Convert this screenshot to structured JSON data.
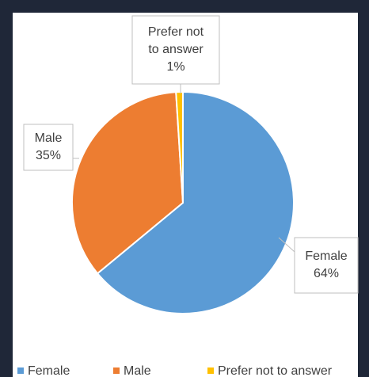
{
  "chart_data": {
    "type": "pie",
    "categories": [
      "Female",
      "Male",
      "Prefer not to answer"
    ],
    "data_label_names": [
      [
        "Female"
      ],
      [
        "Male"
      ],
      [
        "Prefer not",
        "to answer"
      ]
    ],
    "values": [
      64,
      35,
      1
    ],
    "value_labels": [
      "64%",
      "35%",
      "1%"
    ],
    "colors": [
      "#5b9bd5",
      "#ed7d31",
      "#ffc000"
    ],
    "legend": "bottom"
  }
}
